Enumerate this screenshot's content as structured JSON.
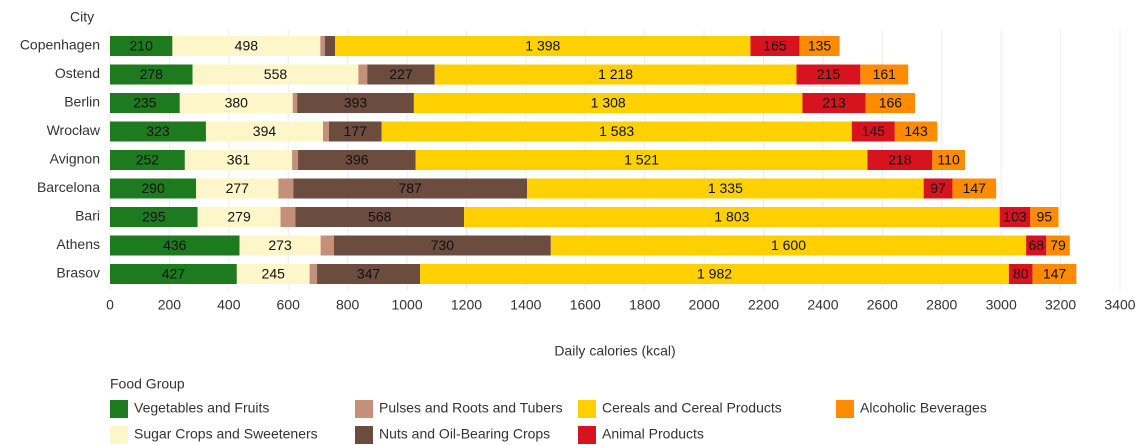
{
  "chart_data": {
    "type": "stacked-barh",
    "ylabel": "City",
    "xlabel": "Daily calories (kcal)",
    "legend_title": "Food Group",
    "categories": [
      "Copenhagen",
      "Ostend",
      "Berlin",
      "Wrocław",
      "Avignon",
      "Barcelona",
      "Bari",
      "Athens",
      "Brasov"
    ],
    "series": [
      {
        "name": "Vegetables and Fruits",
        "color": "#1e7a1e",
        "values": [
          210,
          278,
          235,
          323,
          252,
          290,
          295,
          436,
          427
        ]
      },
      {
        "name": "Sugar Crops and Sweeteners",
        "color": "#fdf6c8",
        "values": [
          498,
          558,
          380,
          394,
          361,
          277,
          279,
          273,
          245
        ]
      },
      {
        "name": "Pulses and Roots and Tubers",
        "color": "#c4907a",
        "values": [
          15,
          30,
          15,
          20,
          20,
          50,
          50,
          45,
          25
        ],
        "value_labels": [
          null,
          null,
          null,
          null,
          null,
          null,
          null,
          null,
          null
        ]
      },
      {
        "name": "Nuts and Oil-Bearing Crops",
        "color": "#6b4c3e",
        "values": [
          35,
          227,
          393,
          177,
          396,
          787,
          568,
          730,
          347
        ],
        "value_labels": [
          null,
          "227",
          "393",
          "177",
          "396",
          "787",
          "568",
          "730",
          "347"
        ]
      },
      {
        "name": "Cereals and Cereal Products",
        "color": "#ffd000",
        "values": [
          1398,
          1218,
          1308,
          1583,
          1521,
          1335,
          1803,
          1600,
          1982
        ],
        "value_labels": [
          "1 398",
          "1 218",
          "1 308",
          "1 583",
          "1 521",
          "1 335",
          "1 803",
          "1 600",
          "1 982"
        ]
      },
      {
        "name": "Animal Products",
        "color": "#d7131f",
        "values": [
          165,
          215,
          213,
          145,
          218,
          97,
          103,
          68,
          80
        ]
      },
      {
        "name": "Alcoholic Beverages",
        "color": "#ff8c00",
        "values": [
          135,
          161,
          166,
          143,
          110,
          147,
          95,
          79,
          147
        ]
      }
    ],
    "xlim": [
      0,
      3400
    ],
    "xticks": [
      0,
      200,
      400,
      600,
      800,
      1000,
      1200,
      1400,
      1600,
      1800,
      2000,
      2200,
      2400,
      2600,
      2800,
      3000,
      3200,
      3400
    ],
    "grid": true
  }
}
